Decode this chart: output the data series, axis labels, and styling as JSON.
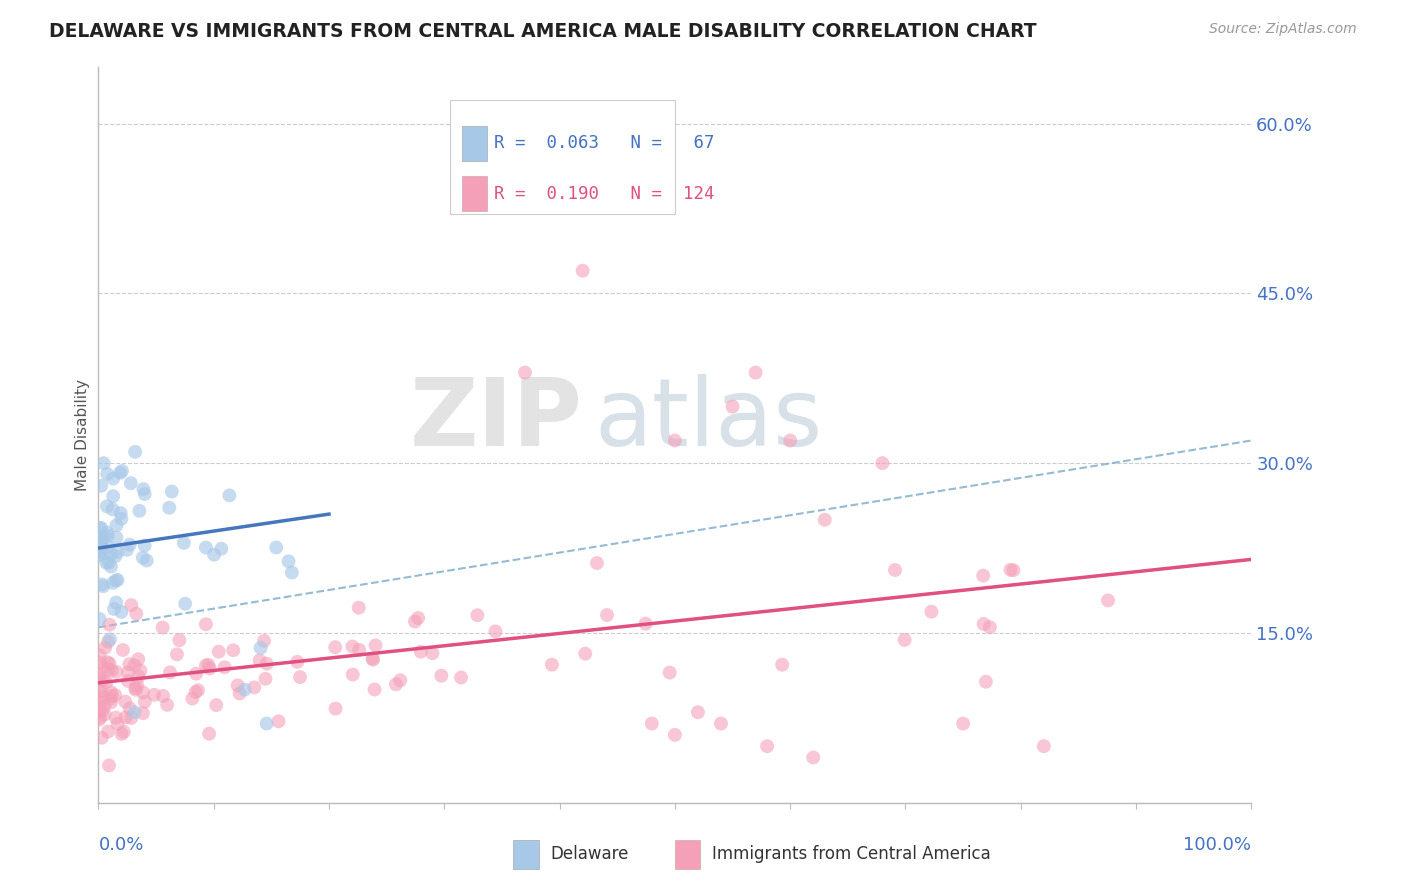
{
  "title": "DELAWARE VS IMMIGRANTS FROM CENTRAL AMERICA MALE DISABILITY CORRELATION CHART",
  "source": "Source: ZipAtlas.com",
  "ylabel": "Male Disability",
  "xlim": [
    0,
    1.0
  ],
  "ylim": [
    0,
    0.65
  ],
  "yticks": [
    0.0,
    0.15,
    0.3,
    0.45,
    0.6
  ],
  "legend_R_delaware": "0.063",
  "legend_N_delaware": "67",
  "legend_R_immigrants": "0.190",
  "legend_N_immigrants": "124",
  "color_delaware": "#a8c8e8",
  "color_immigrants": "#f4a0b8",
  "color_delaware_line": "#4477bb",
  "color_immigrants_line": "#e05080",
  "color_dashed": "#7aaaca",
  "background_color": "#ffffff",
  "watermark_zip": "ZIP",
  "watermark_atlas": "atlas",
  "watermark_color_zip": "#d8dde8",
  "watermark_color_atlas": "#b8cce0"
}
